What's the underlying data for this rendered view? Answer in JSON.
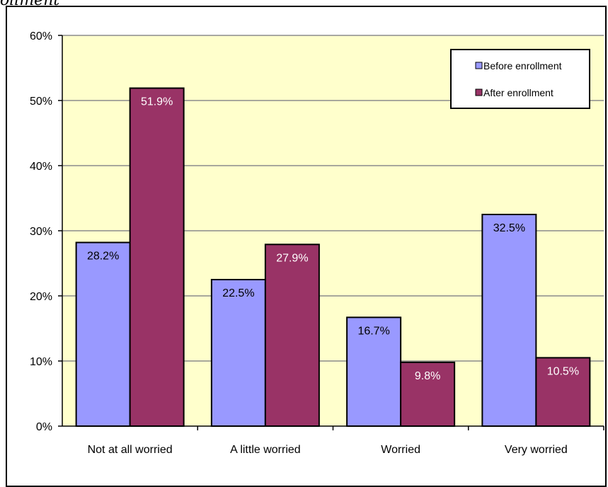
{
  "header": {
    "cutoff_title": "ollment"
  },
  "chart_data": {
    "type": "bar",
    "categories": [
      "Not at all worried",
      "A little worried",
      "Worried",
      "Very worried"
    ],
    "series": [
      {
        "name": "Before enrollment",
        "values": [
          28.2,
          22.5,
          16.7,
          32.5
        ],
        "labels": [
          "28.2%",
          "22.5%",
          "16.7%",
          "32.5%"
        ],
        "color": "#9999ff"
      },
      {
        "name": "After enrollment",
        "values": [
          51.9,
          27.9,
          9.8,
          10.5
        ],
        "labels": [
          "51.9%",
          "27.9%",
          "9.8%",
          "10.5%"
        ],
        "color": "#993366"
      }
    ],
    "ylim": [
      0,
      60
    ],
    "yticks": [
      0,
      10,
      20,
      30,
      40,
      50,
      60
    ],
    "ytick_labels": [
      "0%",
      "10%",
      "20%",
      "30%",
      "40%",
      "50%",
      "60%"
    ],
    "grid": true,
    "plot_background": "#ffffcc",
    "legend_position": "top-right"
  }
}
